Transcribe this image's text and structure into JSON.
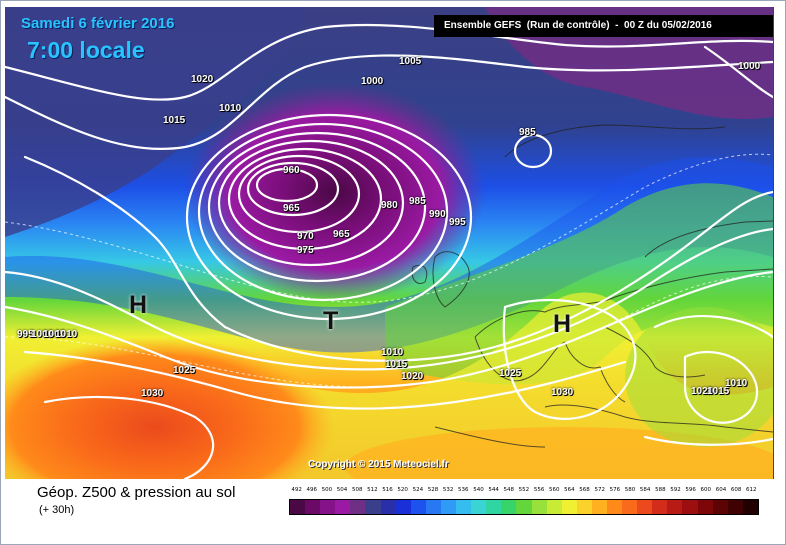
{
  "header": {
    "date": "Samedi 6 février 2016",
    "time": "7:00 locale",
    "run_info": "Ensemble GEFS  (Run de contrôle)  -  00 Z du 05/02/2016"
  },
  "copyright": "Copyright © 2015 Meteociel.fr",
  "footer": {
    "title": "Géop. Z500 & pression au sol",
    "subtitle": "(+ 30h)"
  },
  "pressure_centers": [
    {
      "id": "h-atlantic",
      "label": "H"
    },
    {
      "id": "t-low",
      "label": "T"
    },
    {
      "id": "h-europe",
      "label": "H"
    }
  ],
  "isobar_labels": [
    "1020",
    "1015",
    "1010",
    "1005",
    "1000",
    "1000",
    "985",
    "960",
    "965",
    "970",
    "975",
    "965",
    "980",
    "985",
    "990",
    "995",
    "995",
    "1000",
    "1005",
    "1010",
    "1010",
    "1015",
    "1020",
    "1025",
    "1025",
    "1030",
    "1030",
    "1020",
    "1015",
    "1010"
  ],
  "legend": {
    "values": [
      "492",
      "496",
      "500",
      "504",
      "508",
      "512",
      "516",
      "520",
      "524",
      "528",
      "532",
      "536",
      "540",
      "544",
      "548",
      "552",
      "556",
      "560",
      "564",
      "568",
      "572",
      "576",
      "580",
      "584",
      "588",
      "592",
      "596",
      "600",
      "604",
      "608",
      "612"
    ],
    "colors": [
      "#4a0845",
      "#6a0a66",
      "#86128a",
      "#9a1aa3",
      "#6f2f85",
      "#3a3f8c",
      "#282fa8",
      "#1a2fd8",
      "#1d52ee",
      "#2878f3",
      "#2f9bf6",
      "#36bdf0",
      "#3bd4d4",
      "#2fd6a2",
      "#36d46a",
      "#63d63b",
      "#98e03a",
      "#c8ec35",
      "#f0f033",
      "#fbd22b",
      "#ffb020",
      "#ff8a1a",
      "#f96a1a",
      "#ec4a1c",
      "#d42c1a",
      "#b81a16",
      "#9c0e10",
      "#7e0608",
      "#5e0304",
      "#3f0102",
      "#200000"
    ]
  }
}
